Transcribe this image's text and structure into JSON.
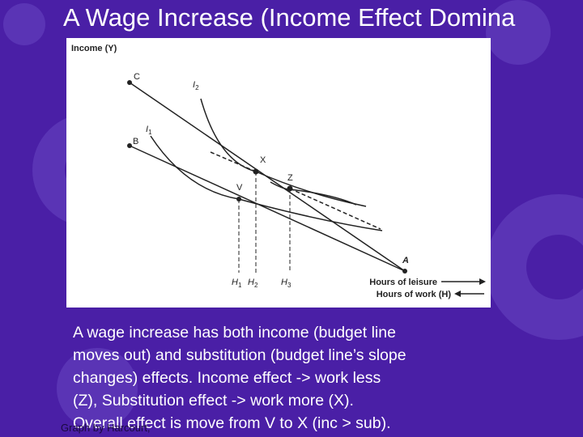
{
  "header": {
    "title": "A Wage Increase (Income Effect Domina"
  },
  "diagram": {
    "y_axis_label": "Income (Y)",
    "points": {
      "C": "C",
      "B": "B",
      "X": "X",
      "Z": "Z",
      "V": "V",
      "A": "A"
    },
    "curves": [
      {
        "letter": "I",
        "sub": "2"
      },
      {
        "letter": "I",
        "sub": "1"
      }
    ],
    "hours": [
      {
        "letter": "H",
        "sub": "1"
      },
      {
        "letter": "H",
        "sub": "2"
      },
      {
        "letter": "H",
        "sub": "3"
      }
    ],
    "leisure_label": "Hours of leisure",
    "work_label": "Hours of work (H)"
  },
  "caption": {
    "lines": [
      "A wage increase has both income (budget line",
      "moves out) and substitution (budget line’s slope",
      "changes) effects.  Income effect -> work less",
      "(Z), Substitution effect -> work more (X).",
      "Overall effect is move from V to X (inc > sub)."
    ]
  },
  "credit": "Graph by Harcourt,"
}
